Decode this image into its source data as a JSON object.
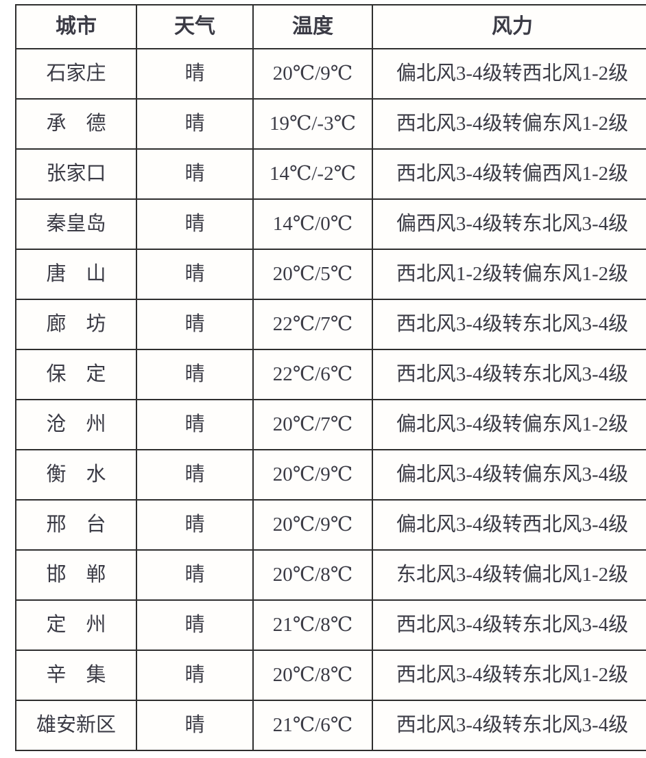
{
  "table": {
    "columns": [
      {
        "key": "city",
        "label": "城市"
      },
      {
        "key": "weather",
        "label": "天气"
      },
      {
        "key": "temp",
        "label": "温度"
      },
      {
        "key": "wind",
        "label": "风力"
      }
    ],
    "rows": [
      {
        "city": "石家庄",
        "weather": "晴",
        "temp": "20℃/9℃",
        "wind": "偏北风3-4级转西北风1-2级"
      },
      {
        "city": "承　德",
        "weather": "晴",
        "temp": "19℃/-3℃",
        "wind": "西北风3-4级转偏东风1-2级"
      },
      {
        "city": "张家口",
        "weather": "晴",
        "temp": "14℃/-2℃",
        "wind": "西北风3-4级转偏西风1-2级"
      },
      {
        "city": "秦皇岛",
        "weather": "晴",
        "temp": "14℃/0℃",
        "wind": "偏西风3-4级转东北风3-4级"
      },
      {
        "city": "唐　山",
        "weather": "晴",
        "temp": "20℃/5℃",
        "wind": "西北风1-2级转偏东风1-2级"
      },
      {
        "city": "廊　坊",
        "weather": "晴",
        "temp": "22℃/7℃",
        "wind": "西北风3-4级转东北风3-4级"
      },
      {
        "city": "保　定",
        "weather": "晴",
        "temp": "22℃/6℃",
        "wind": "西北风3-4级转东北风3-4级"
      },
      {
        "city": "沧　州",
        "weather": "晴",
        "temp": "20℃/7℃",
        "wind": "偏北风3-4级转偏东风1-2级"
      },
      {
        "city": "衡　水",
        "weather": "晴",
        "temp": "20℃/9℃",
        "wind": "偏北风3-4级转偏东风3-4级"
      },
      {
        "city": "邢　台",
        "weather": "晴",
        "temp": "20℃/9℃",
        "wind": "偏北风3-4级转西北风3-4级"
      },
      {
        "city": "邯　郸",
        "weather": "晴",
        "temp": "20℃/8℃",
        "wind": "东北风3-4级转偏北风1-2级"
      },
      {
        "city": "定　州",
        "weather": "晴",
        "temp": "21℃/8℃",
        "wind": "西北风3-4级转东北风3-4级"
      },
      {
        "city": "辛　集",
        "weather": "晴",
        "temp": "20℃/8℃",
        "wind": "西北风3-4级转东北风1-2级"
      },
      {
        "city": "雄安新区",
        "weather": "晴",
        "temp": "21℃/6℃",
        "wind": "西北风3-4级转东北风3-4级"
      }
    ],
    "colors": {
      "text": "#3b3b45",
      "temperature": "#b23a31",
      "border": "#2e2e2e",
      "background": "#fffefc"
    }
  }
}
